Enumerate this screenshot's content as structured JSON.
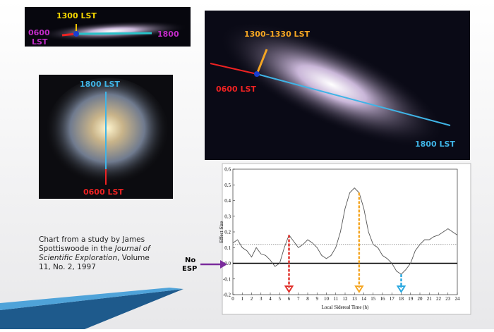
{
  "images": {
    "edge_on": {
      "top_label": "1300 LST",
      "left_label": [
        "0600",
        "LST"
      ],
      "right_label": "1800"
    },
    "spiral": {
      "top_label": "1800 LST",
      "bottom_label": "0600 LST"
    },
    "andromeda": {
      "top_label": "1300–1330 LST",
      "left_label": "0600 LST",
      "right_label": "1800 LST"
    }
  },
  "caption": [
    [
      "Chart from a study by James"
    ],
    [
      "Spottiswoode in the ",
      "Journal of"
    ],
    [
      "Scientific Exploration",
      ", Volume"
    ],
    [
      "11, No. 2, 1997"
    ]
  ],
  "no_esp": [
    "No",
    "ESP"
  ],
  "chart_data": {
    "type": "line",
    "ylabel": "Effect Size",
    "xlabel": "Local Sidereal Time (h)",
    "color": "#555555",
    "x": [
      0,
      0.5,
      1,
      1.5,
      2,
      2.5,
      3,
      3.5,
      4,
      4.5,
      5,
      5.5,
      6,
      6.5,
      7,
      7.5,
      8,
      8.5,
      9,
      9.5,
      10,
      10.5,
      11,
      11.5,
      12,
      12.5,
      13,
      13.5,
      14,
      14.5,
      15,
      15.5,
      16,
      16.5,
      17,
      17.5,
      18,
      18.5,
      19,
      19.5,
      20,
      20.5,
      21,
      21.5,
      22,
      22.5,
      23,
      23.5,
      24
    ],
    "values": [
      0.13,
      0.15,
      0.1,
      0.08,
      0.04,
      0.1,
      0.06,
      0.05,
      0.02,
      -0.02,
      0.0,
      0.1,
      0.18,
      0.14,
      0.1,
      0.12,
      0.15,
      0.13,
      0.1,
      0.05,
      0.03,
      0.05,
      0.1,
      0.2,
      0.35,
      0.45,
      0.48,
      0.45,
      0.35,
      0.2,
      0.12,
      0.1,
      0.05,
      0.03,
      0.0,
      -0.05,
      -0.07,
      -0.04,
      0.0,
      0.08,
      0.12,
      0.15,
      0.15,
      0.17,
      0.18,
      0.2,
      0.22,
      0.2,
      0.18
    ],
    "xlim": [
      0,
      24
    ],
    "xticks": [
      0,
      1,
      2,
      3,
      4,
      5,
      6,
      7,
      8,
      9,
      10,
      11,
      12,
      13,
      14,
      15,
      16,
      17,
      18,
      19,
      20,
      21,
      22,
      23,
      24
    ],
    "ylim": [
      -0.2,
      0.6
    ],
    "yticks": [
      -0.2,
      -0.1,
      {
        "value": 0,
        "label": "0.0"
      },
      0.1,
      0.2,
      0.3,
      0.4,
      0.5,
      0.6
    ],
    "zero_line": 0,
    "dotted_line": 0.12,
    "arrows": [
      {
        "x": 6,
        "color": "#e0302a"
      },
      {
        "x": 13.5,
        "color": "#f5a623"
      },
      {
        "x": 18,
        "color": "#29a8e0"
      }
    ]
  }
}
